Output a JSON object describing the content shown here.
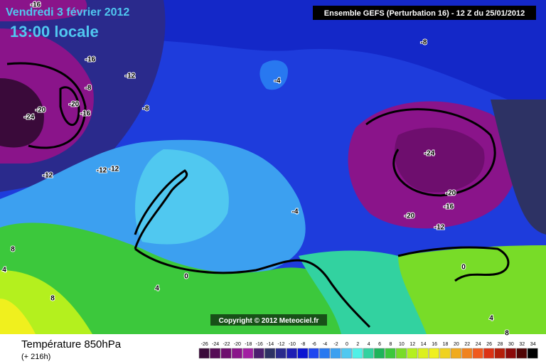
{
  "header": {
    "date": "Vendredi 3 février 2012",
    "time": "13:00 locale",
    "model": "Ensemble GEFS (Perturbation 16)  -  12 Z du 25/01/2012"
  },
  "map": {
    "contour_labels": [
      "-16",
      "-16",
      "-12",
      "-8",
      "-20",
      "-16",
      "-24",
      "-20",
      "-8",
      "-12",
      "-12",
      "-12",
      "-8",
      "-4",
      "-24",
      "-20",
      "-16",
      "-20",
      "-12",
      "-4",
      "8",
      "4",
      "0",
      "4",
      "8",
      "0",
      "4",
      "8"
    ]
  },
  "copyright": "Copyright © 2012 Meteociel.fr",
  "legend": {
    "title": "Température 850hPa",
    "subtitle": "(+ 216h)",
    "labels": [
      -26,
      -24,
      -22,
      -20,
      -18,
      -16,
      -14,
      -12,
      -10,
      -8,
      -6,
      -4,
      -2,
      0,
      2,
      4,
      6,
      8,
      10,
      12,
      14,
      16,
      18,
      20,
      22,
      24,
      26,
      28,
      30,
      32,
      34
    ],
    "colors": [
      "#3a0a3a",
      "#560c56",
      "#6e0e6e",
      "#8a148a",
      "#a21ea2",
      "#4b1e6e",
      "#2d3264",
      "#2a2a8c",
      "#1e1eb4",
      "#0a14d2",
      "#1e46f0",
      "#2878f0",
      "#3ca0f0",
      "#50c8f0",
      "#50f0e6",
      "#32d2a0",
      "#1eb45a",
      "#3cc83c",
      "#78dc28",
      "#b4f01e",
      "#dcf01e",
      "#f0f01e",
      "#f0d21e",
      "#f0aa1e",
      "#f0821e",
      "#f05a1e",
      "#dc3214",
      "#b41e0a",
      "#8c0a0a",
      "#500505",
      "#000000"
    ]
  }
}
